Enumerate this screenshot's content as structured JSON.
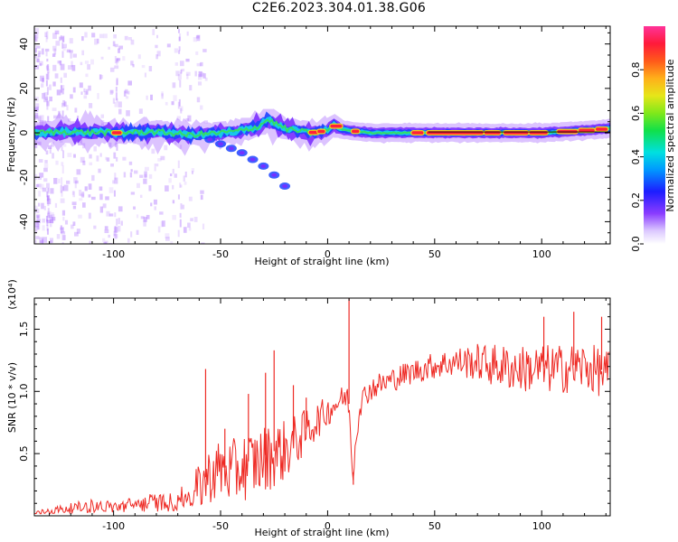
{
  "title": "C2E6.2023.304.01.38.G06",
  "colors": {
    "snr_line": "#ee2a24",
    "dominant": "#ff1f3a",
    "ridge": "#33dd66",
    "core": "#1d44ff",
    "halo": "#b27bff"
  },
  "chart_data": [
    {
      "type": "heatmap",
      "xlabel": "Height of straight line (km)",
      "ylabel": "Frequency (Hz)",
      "xlim": [
        -137,
        132
      ],
      "ylim": [
        -50,
        48
      ],
      "x_ticks": [
        -100,
        -50,
        0,
        50,
        100
      ],
      "y_ticks": [
        40,
        20,
        0,
        -20,
        -40
      ],
      "colorbar": {
        "label": "Normalized spectral amplitude",
        "ticks": [
          "0.0",
          "0.2",
          "0.4",
          "0.6",
          "0.8"
        ],
        "range": [
          0,
          1
        ]
      },
      "ridge": {
        "x": [
          -137,
          -120,
          -100,
          -80,
          -65,
          -50,
          -40,
          -32,
          -28,
          -24,
          -20,
          -15,
          -8,
          0,
          3,
          5,
          10,
          20,
          35,
          47,
          60,
          80,
          100,
          120,
          132
        ],
        "freq": [
          0,
          0.5,
          0,
          0.5,
          -1,
          0,
          1,
          3,
          6,
          4,
          2,
          1,
          0,
          1,
          4,
          2,
          1,
          0,
          0,
          0,
          0,
          0,
          0,
          1,
          2
        ]
      },
      "branch": {
        "x": [
          -55,
          -50,
          -45,
          -40,
          -35,
          -30,
          -25,
          -20
        ],
        "freq": [
          -3,
          -5,
          -7,
          -9,
          -12,
          -15,
          -19,
          -24
        ]
      }
    },
    {
      "type": "line",
      "xlabel": "Height of straight line (km)",
      "ylabel": "SNR (10 * v/v)",
      "y_multiplier": "(x10⁴)",
      "xlim": [
        -137,
        132
      ],
      "ylim": [
        0,
        1.75
      ],
      "x_ticks": [
        -100,
        -50,
        0,
        50,
        100
      ],
      "y_ticks": [
        "0.5",
        "1.0",
        "1.5"
      ],
      "y_tick_values": [
        0.5,
        1.0,
        1.5
      ],
      "series": [
        {
          "points": [
            [
              -137,
              0.02
            ],
            [
              -130,
              0.04
            ],
            [
              -120,
              0.06
            ],
            [
              -110,
              0.08
            ],
            [
              -100,
              0.07
            ],
            [
              -90,
              0.09
            ],
            [
              -80,
              0.11
            ],
            [
              -75,
              0.1
            ],
            [
              -70,
              0.13
            ],
            [
              -65,
              0.15
            ],
            [
              -60,
              0.25
            ],
            [
              -55,
              0.35
            ],
            [
              -50,
              0.4
            ],
            [
              -45,
              0.37
            ],
            [
              -40,
              0.42
            ],
            [
              -35,
              0.45
            ],
            [
              -30,
              0.48
            ],
            [
              -25,
              0.52
            ],
            [
              -20,
              0.55
            ],
            [
              -15,
              0.62
            ],
            [
              -10,
              0.7
            ],
            [
              -5,
              0.78
            ],
            [
              0,
              0.85
            ],
            [
              3,
              0.9
            ],
            [
              6,
              0.94
            ],
            [
              9,
              0.97
            ],
            [
              10,
              0.9
            ],
            [
              11,
              0.55
            ],
            [
              12,
              0.35
            ],
            [
              13,
              0.6
            ],
            [
              15,
              0.9
            ],
            [
              18,
              1.0
            ],
            [
              22,
              1.05
            ],
            [
              27,
              1.08
            ],
            [
              32,
              1.12
            ],
            [
              37,
              1.15
            ],
            [
              42,
              1.18
            ],
            [
              50,
              1.22
            ],
            [
              60,
              1.25
            ],
            [
              70,
              1.25
            ],
            [
              80,
              1.22
            ],
            [
              90,
              1.2
            ],
            [
              100,
              1.2
            ],
            [
              110,
              1.2
            ],
            [
              120,
              1.22
            ],
            [
              132,
              1.15
            ]
          ],
          "noise_envelope": [
            [
              -137,
              0.02
            ],
            [
              -100,
              0.03
            ],
            [
              -80,
              0.04
            ],
            [
              -65,
              0.1
            ],
            [
              -60,
              0.2
            ],
            [
              -50,
              0.25
            ],
            [
              -40,
              0.28
            ],
            [
              -30,
              0.28
            ],
            [
              -20,
              0.25
            ],
            [
              -10,
              0.18
            ],
            [
              0,
              0.12
            ],
            [
              10,
              0.1
            ],
            [
              20,
              0.1
            ],
            [
              40,
              0.1
            ],
            [
              60,
              0.12
            ],
            [
              80,
              0.18
            ],
            [
              100,
              0.2
            ],
            [
              132,
              0.2
            ]
          ],
          "spikes": [
            [
              -57,
              1.18
            ],
            [
              -48,
              0.7
            ],
            [
              -37,
              0.98
            ],
            [
              -29,
              1.15
            ],
            [
              -25,
              1.33
            ],
            [
              -16,
              1.05
            ],
            [
              -10,
              0.95
            ],
            [
              10,
              1.75
            ],
            [
              12,
              0.25
            ],
            [
              101,
              1.6
            ],
            [
              115,
              1.64
            ],
            [
              128,
              1.6
            ]
          ]
        }
      ]
    }
  ]
}
